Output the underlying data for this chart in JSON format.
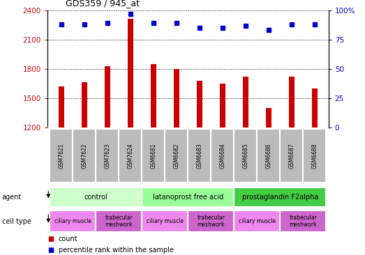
{
  "title": "GDS359 / 945_at",
  "samples": [
    "GSM7621",
    "GSM7622",
    "GSM7623",
    "GSM7624",
    "GSM6681",
    "GSM6682",
    "GSM6683",
    "GSM6684",
    "GSM6685",
    "GSM6686",
    "GSM6687",
    "GSM6688"
  ],
  "counts": [
    1620,
    1660,
    1830,
    2310,
    1850,
    1800,
    1680,
    1650,
    1720,
    1400,
    1720,
    1600
  ],
  "percentiles": [
    88,
    88,
    89,
    97,
    89,
    89,
    85,
    85,
    87,
    83,
    88,
    88
  ],
  "ylim_left": [
    1200,
    2400
  ],
  "ylim_right": [
    0,
    100
  ],
  "yticks_left": [
    1200,
    1500,
    1800,
    2100,
    2400
  ],
  "yticks_right": [
    0,
    25,
    50,
    75,
    100
  ],
  "bar_color": "#cc0000",
  "dot_color": "#0000cc",
  "agent_labels": [
    {
      "text": "control",
      "span": [
        0,
        4
      ],
      "color": "#ccffcc"
    },
    {
      "text": "latanoprost free acid",
      "span": [
        4,
        8
      ],
      "color": "#99ff99"
    },
    {
      "text": "prostaglandin F2alpha",
      "span": [
        8,
        12
      ],
      "color": "#44cc44"
    }
  ],
  "cell_labels": [
    {
      "text": "ciliary muscle",
      "span": [
        0,
        2
      ],
      "color": "#ee88ee"
    },
    {
      "text": "trabecular\nmeshwork",
      "span": [
        2,
        4
      ],
      "color": "#cc66cc"
    },
    {
      "text": "ciliary muscle",
      "span": [
        4,
        6
      ],
      "color": "#ee88ee"
    },
    {
      "text": "trabecular\nmeshwork",
      "span": [
        6,
        8
      ],
      "color": "#cc66cc"
    },
    {
      "text": "ciliary muscle",
      "span": [
        8,
        10
      ],
      "color": "#ee88ee"
    },
    {
      "text": "trabecular\nmeshwork",
      "span": [
        10,
        12
      ],
      "color": "#cc66cc"
    }
  ],
  "grid_color": "#000000",
  "xticklabel_bg": "#bbbbbb",
  "ylabel_left_color": "#cc0000",
  "ylabel_right_color": "#0000cc",
  "bar_width": 0.25
}
